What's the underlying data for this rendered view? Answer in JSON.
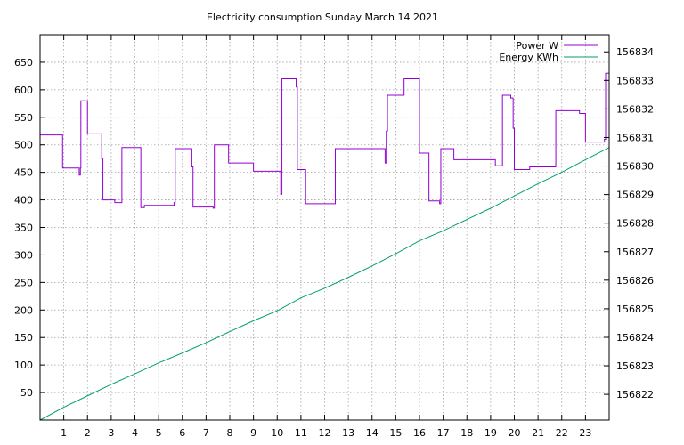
{
  "chart_data": {
    "type": "line",
    "title": "Electricity consumption Sunday March 14 2021",
    "xlabel": "",
    "ylabel": "",
    "x_ticks": [
      "1",
      "2",
      "3",
      "4",
      "5",
      "6",
      "7",
      "8",
      "9",
      "10",
      "11",
      "12",
      "13",
      "14",
      "15",
      "16",
      "17",
      "18",
      "19",
      "20",
      "21",
      "22",
      "23"
    ],
    "xlim": [
      0,
      24
    ],
    "y_ticks": [
      "50",
      "100",
      "150",
      "200",
      "250",
      "300",
      "350",
      "400",
      "450",
      "500",
      "550",
      "600",
      "650"
    ],
    "ylim": [
      0,
      700
    ],
    "y2_ticks": [
      "156822",
      "156823",
      "156824",
      "156825",
      "156826",
      "156827",
      "156828",
      "156829",
      "156830",
      "156831",
      "156832",
      "156833",
      "156834"
    ],
    "y2lim": [
      156821.1,
      156834.6
    ],
    "grid": true,
    "legend_position": "top-right",
    "series": [
      {
        "name": "Power W",
        "axis": "left",
        "style": "step",
        "color": "#9400d3",
        "x": [
          0,
          0.95,
          1.65,
          1.7,
          1.72,
          2.0,
          2.6,
          2.65,
          2.68,
          3.15,
          3.45,
          4.1,
          4.25,
          4.4,
          5.6,
          5.65,
          5.7,
          6.4,
          6.45,
          6.5,
          7.3,
          7.35,
          7.4,
          7.95,
          9.0,
          10.1,
          10.15,
          10.2,
          10.8,
          10.85,
          11.2,
          12.45,
          14.5,
          14.55,
          14.6,
          14.65,
          15.3,
          15.35,
          16.0,
          16.4,
          16.85,
          16.9,
          17.45,
          18.5,
          19.2,
          19.5,
          19.85,
          19.95,
          20.0,
          20.65,
          21.7,
          21.75,
          22.75,
          23.0,
          23.65,
          23.8,
          23.85
        ],
        "y": [
          518,
          458,
          445,
          458,
          580,
          520,
          475,
          400,
          400,
          395,
          495,
          495,
          386,
          390,
          390,
          395,
          493,
          460,
          387,
          387,
          385,
          500,
          500,
          467,
          452,
          452,
          410,
          620,
          605,
          455,
          393,
          493,
          493,
          467,
          525,
          590,
          590,
          620,
          485,
          398,
          393,
          493,
          473,
          473,
          462,
          590,
          585,
          530,
          455,
          460,
          460,
          562,
          557,
          505,
          505,
          510,
          630
        ]
      },
      {
        "name": "Energy KWh",
        "axis": "right",
        "style": "line",
        "color": "#009e73",
        "x": [
          0,
          1,
          2,
          3,
          4,
          5,
          6,
          7,
          8,
          9,
          10,
          11,
          12,
          13,
          14,
          15,
          16,
          17,
          18,
          19,
          20,
          21,
          22,
          23,
          24
        ],
        "y": [
          156821.1,
          156821.55,
          156821.95,
          156822.35,
          156822.72,
          156823.1,
          156823.45,
          156823.81,
          156824.2,
          156824.58,
          156824.93,
          156825.38,
          156825.72,
          156826.1,
          156826.5,
          156826.93,
          156827.38,
          156827.73,
          156828.13,
          156828.52,
          156828.95,
          156829.38,
          156829.78,
          156830.22,
          156830.65
        ]
      }
    ]
  }
}
